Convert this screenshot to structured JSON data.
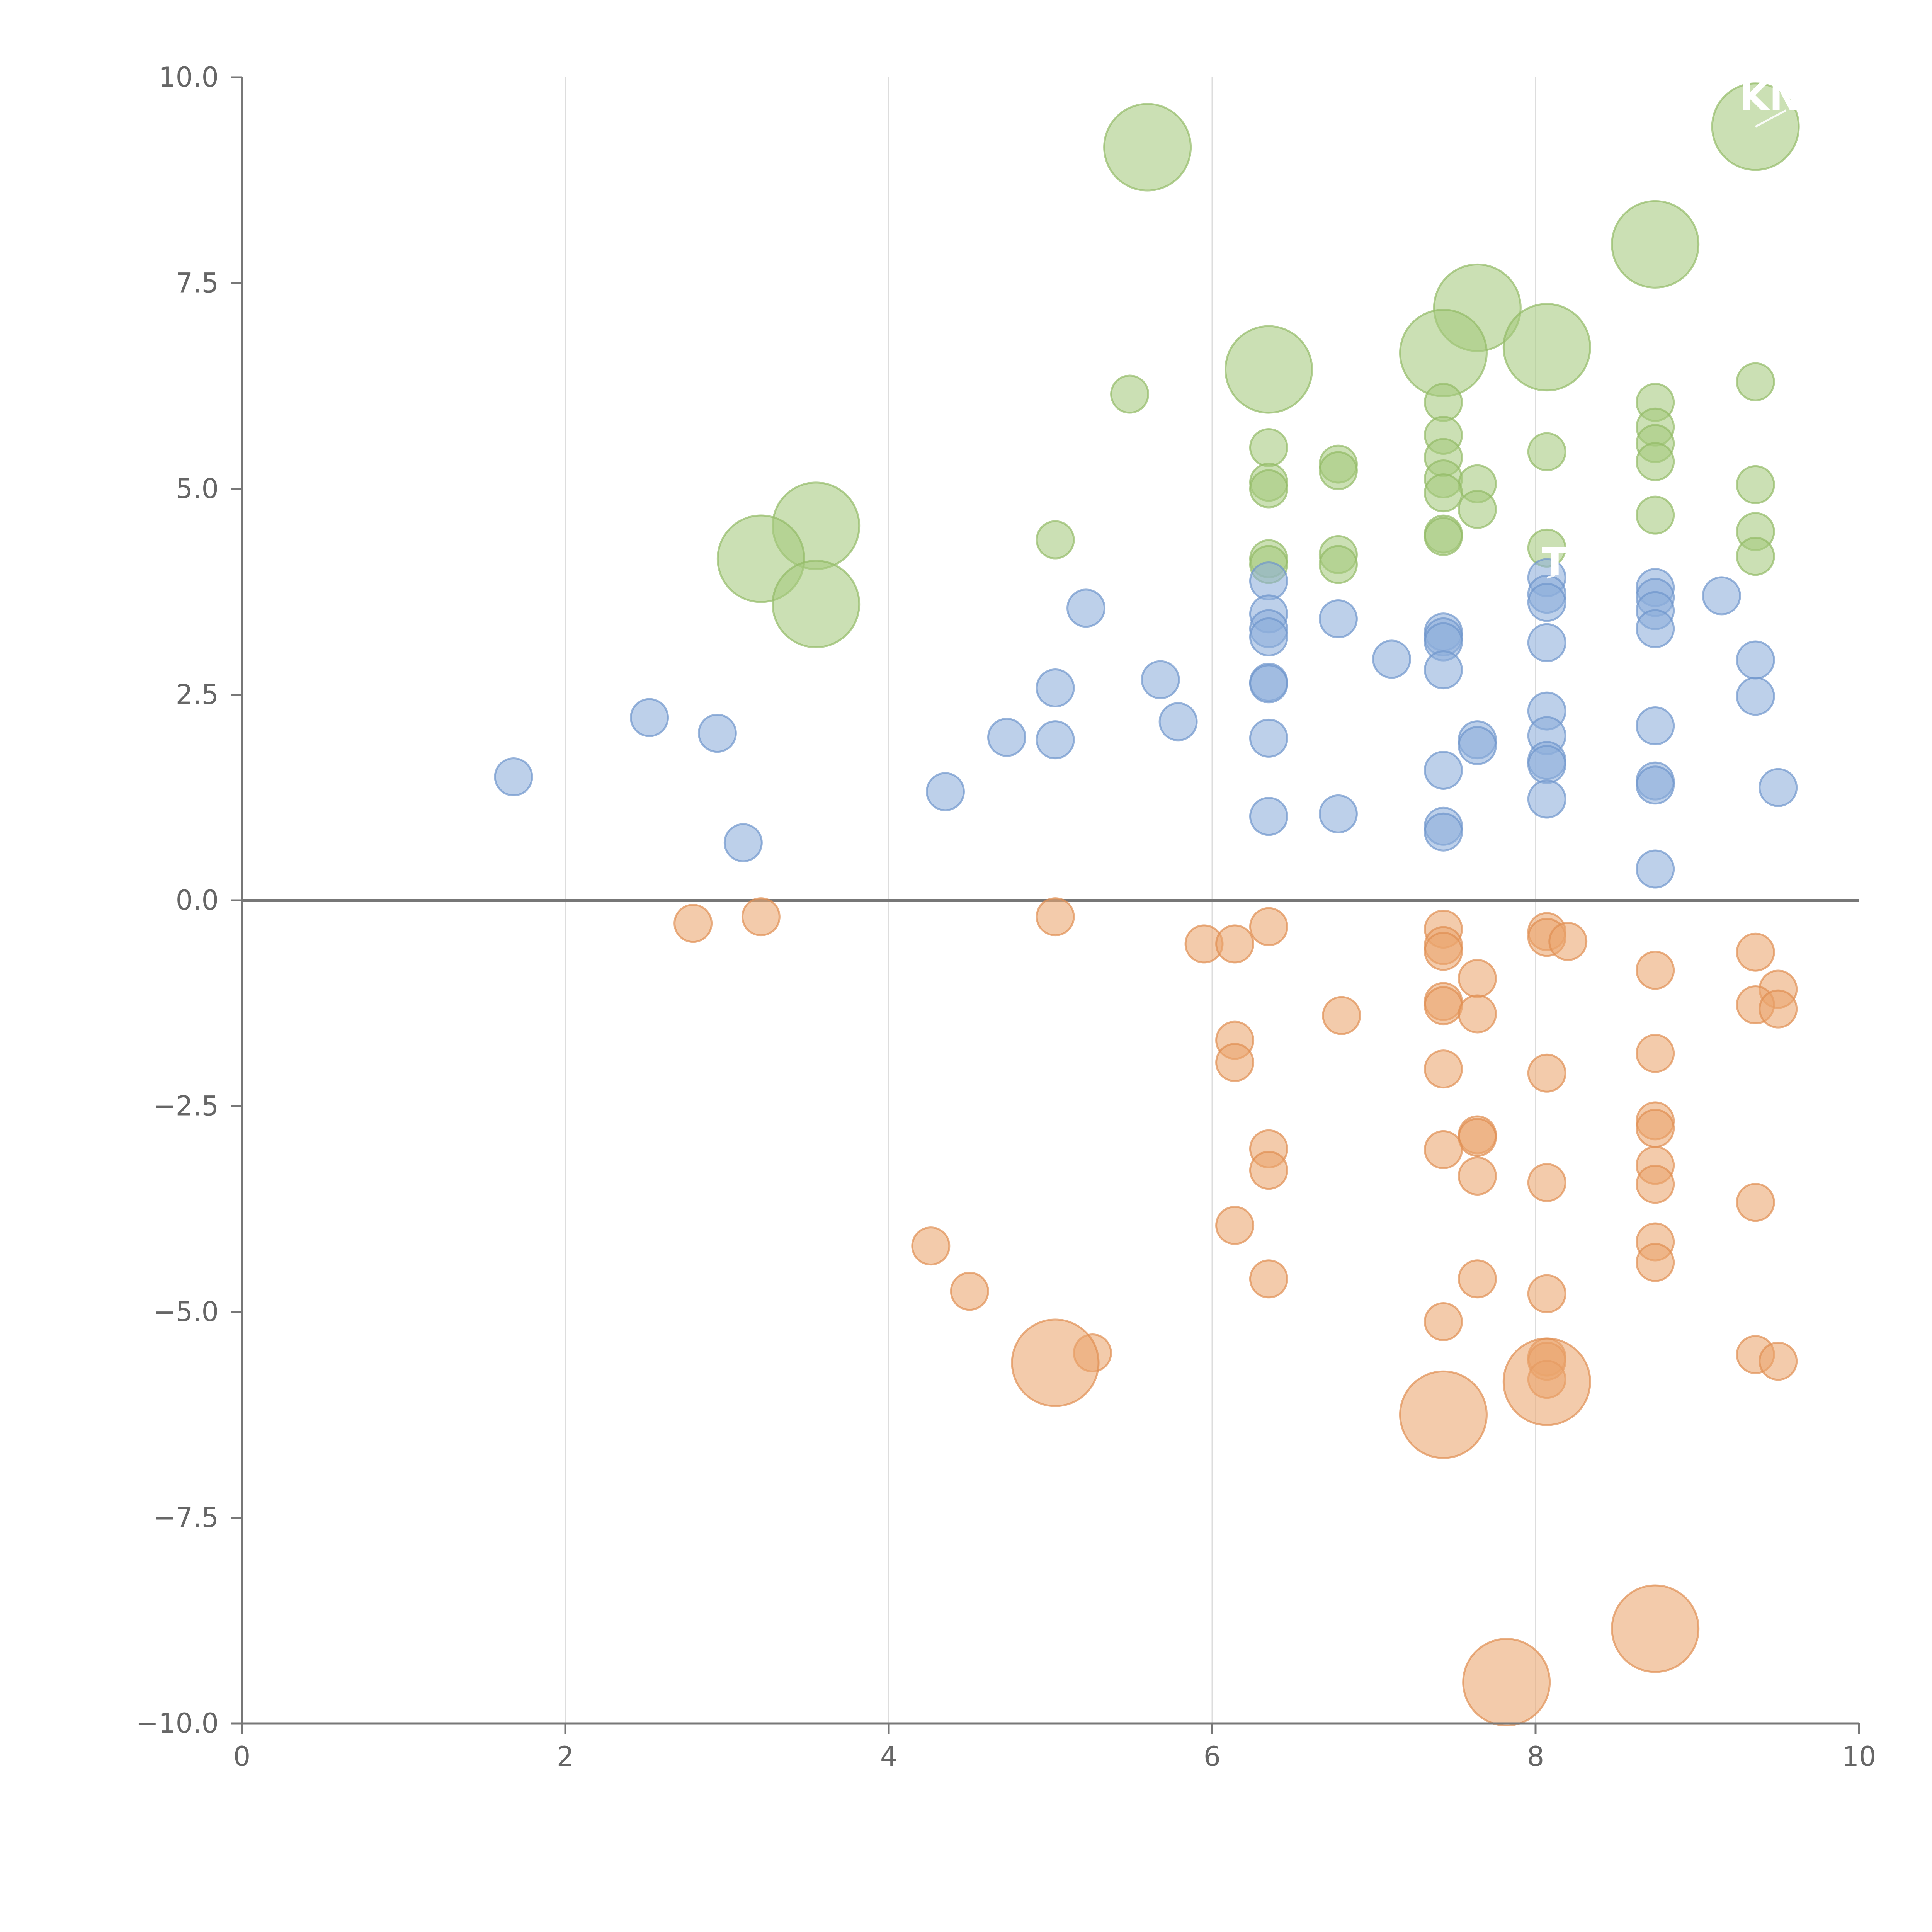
{
  "chart_data": {
    "type": "scatter",
    "title": "",
    "xlabel": "",
    "ylabel": "",
    "xlim": [
      0,
      10
    ],
    "ylim": [
      -10,
      10
    ],
    "x_ticks": [
      0,
      2,
      4,
      6,
      8,
      10
    ],
    "y_ticks": [
      10.0,
      7.5,
      5.0,
      2.5,
      0.0,
      -2.5,
      -5.0,
      -7.5,
      -10.0
    ],
    "x_tick_labels": [
      "0",
      "2",
      "4",
      "6",
      "8",
      "10"
    ],
    "y_tick_labels": [
      "10.0",
      "7.5",
      "5.0",
      "2.5",
      "0.0",
      "−2.5",
      "−5.0",
      "−7.5",
      "−10.0"
    ],
    "grid_x": true,
    "zero_line": true,
    "series": [
      {
        "name": "green",
        "color": "#a6c97e",
        "stroke": "#93bb67",
        "points": [
          {
            "x": 9.36,
            "y": 9.4,
            "s": "L"
          },
          {
            "x": 5.6,
            "y": 9.15,
            "s": "L"
          },
          {
            "x": 8.74,
            "y": 7.97,
            "s": "L"
          },
          {
            "x": 7.64,
            "y": 7.2,
            "s": "L"
          },
          {
            "x": 8.07,
            "y": 6.72,
            "s": "L"
          },
          {
            "x": 7.43,
            "y": 6.65,
            "s": "L"
          },
          {
            "x": 6.35,
            "y": 6.45,
            "s": "L"
          },
          {
            "x": 3.55,
            "y": 4.55,
            "s": "L"
          },
          {
            "x": 3.21,
            "y": 4.15,
            "s": "L"
          },
          {
            "x": 3.55,
            "y": 3.6,
            "s": "L"
          },
          {
            "x": 5.49,
            "y": 6.15,
            "s": "S"
          },
          {
            "x": 9.36,
            "y": 6.3,
            "s": "S"
          },
          {
            "x": 7.43,
            "y": 6.05,
            "s": "S"
          },
          {
            "x": 8.74,
            "y": 6.05,
            "s": "S"
          },
          {
            "x": 7.43,
            "y": 5.65,
            "s": "S"
          },
          {
            "x": 8.74,
            "y": 5.75,
            "s": "S"
          },
          {
            "x": 8.74,
            "y": 5.55,
            "s": "S"
          },
          {
            "x": 6.35,
            "y": 5.5,
            "s": "S"
          },
          {
            "x": 8.07,
            "y": 5.45,
            "s": "S"
          },
          {
            "x": 7.43,
            "y": 5.38,
            "s": "S"
          },
          {
            "x": 8.74,
            "y": 5.33,
            "s": "S"
          },
          {
            "x": 6.78,
            "y": 5.3,
            "s": "S"
          },
          {
            "x": 6.78,
            "y": 5.22,
            "s": "S"
          },
          {
            "x": 7.43,
            "y": 5.12,
            "s": "S"
          },
          {
            "x": 6.35,
            "y": 5.08,
            "s": "S"
          },
          {
            "x": 7.64,
            "y": 5.06,
            "s": "S"
          },
          {
            "x": 9.36,
            "y": 5.05,
            "s": "S"
          },
          {
            "x": 6.35,
            "y": 5.0,
            "s": "S"
          },
          {
            "x": 7.43,
            "y": 4.95,
            "s": "S"
          },
          {
            "x": 7.64,
            "y": 4.75,
            "s": "S"
          },
          {
            "x": 8.74,
            "y": 4.68,
            "s": "S"
          },
          {
            "x": 9.36,
            "y": 4.48,
            "s": "S"
          },
          {
            "x": 7.43,
            "y": 4.45,
            "s": "S"
          },
          {
            "x": 7.43,
            "y": 4.42,
            "s": "S"
          },
          {
            "x": 5.03,
            "y": 4.38,
            "s": "S"
          },
          {
            "x": 8.07,
            "y": 4.28,
            "s": "S"
          },
          {
            "x": 6.78,
            "y": 4.2,
            "s": "S"
          },
          {
            "x": 9.36,
            "y": 4.18,
            "s": "S"
          },
          {
            "x": 6.35,
            "y": 4.15,
            "s": "S"
          },
          {
            "x": 6.35,
            "y": 4.08,
            "s": "S"
          },
          {
            "x": 6.78,
            "y": 4.08,
            "s": "S"
          }
        ]
      },
      {
        "name": "blue",
        "color": "#8eaedb",
        "stroke": "#6f95cc",
        "points": [
          {
            "x": 6.35,
            "y": 3.88,
            "s": "S"
          },
          {
            "x": 8.07,
            "y": 3.92,
            "s": "S"
          },
          {
            "x": 8.74,
            "y": 3.8,
            "s": "S"
          },
          {
            "x": 8.07,
            "y": 3.72,
            "s": "S"
          },
          {
            "x": 8.74,
            "y": 3.68,
            "s": "S"
          },
          {
            "x": 9.15,
            "y": 3.7,
            "s": "S"
          },
          {
            "x": 8.07,
            "y": 3.62,
            "s": "S"
          },
          {
            "x": 5.22,
            "y": 3.55,
            "s": "S"
          },
          {
            "x": 8.74,
            "y": 3.52,
            "s": "S"
          },
          {
            "x": 6.35,
            "y": 3.48,
            "s": "S"
          },
          {
            "x": 6.78,
            "y": 3.42,
            "s": "S"
          },
          {
            "x": 8.74,
            "y": 3.3,
            "s": "S"
          },
          {
            "x": 6.35,
            "y": 3.3,
            "s": "S"
          },
          {
            "x": 7.43,
            "y": 3.26,
            "s": "S"
          },
          {
            "x": 7.43,
            "y": 3.2,
            "s": "S"
          },
          {
            "x": 6.35,
            "y": 3.2,
            "s": "S"
          },
          {
            "x": 7.43,
            "y": 3.14,
            "s": "S"
          },
          {
            "x": 8.07,
            "y": 3.13,
            "s": "S"
          },
          {
            "x": 7.11,
            "y": 2.93,
            "s": "S"
          },
          {
            "x": 9.36,
            "y": 2.92,
            "s": "S"
          },
          {
            "x": 7.43,
            "y": 2.8,
            "s": "S"
          },
          {
            "x": 5.68,
            "y": 2.68,
            "s": "S"
          },
          {
            "x": 6.35,
            "y": 2.65,
            "s": "S"
          },
          {
            "x": 6.35,
            "y": 2.63,
            "s": "S"
          },
          {
            "x": 5.03,
            "y": 2.58,
            "s": "S"
          },
          {
            "x": 9.36,
            "y": 2.48,
            "s": "S"
          },
          {
            "x": 8.07,
            "y": 2.3,
            "s": "S"
          },
          {
            "x": 2.52,
            "y": 2.22,
            "s": "S"
          },
          {
            "x": 5.79,
            "y": 2.17,
            "s": "S"
          },
          {
            "x": 8.74,
            "y": 2.12,
            "s": "S"
          },
          {
            "x": 2.94,
            "y": 2.03,
            "s": "S"
          },
          {
            "x": 8.07,
            "y": 2.0,
            "s": "S"
          },
          {
            "x": 4.73,
            "y": 1.98,
            "s": "S"
          },
          {
            "x": 6.35,
            "y": 1.97,
            "s": "S"
          },
          {
            "x": 5.03,
            "y": 1.95,
            "s": "S"
          },
          {
            "x": 7.64,
            "y": 1.95,
            "s": "S"
          },
          {
            "x": 7.64,
            "y": 1.88,
            "s": "S"
          },
          {
            "x": 8.07,
            "y": 1.7,
            "s": "S"
          },
          {
            "x": 8.07,
            "y": 1.65,
            "s": "S"
          },
          {
            "x": 7.43,
            "y": 1.58,
            "s": "S"
          },
          {
            "x": 1.68,
            "y": 1.5,
            "s": "S"
          },
          {
            "x": 8.74,
            "y": 1.45,
            "s": "S"
          },
          {
            "x": 8.74,
            "y": 1.4,
            "s": "S"
          },
          {
            "x": 9.5,
            "y": 1.37,
            "s": "S"
          },
          {
            "x": 4.35,
            "y": 1.32,
            "s": "S"
          },
          {
            "x": 8.07,
            "y": 1.23,
            "s": "S"
          },
          {
            "x": 6.78,
            "y": 1.05,
            "s": "S"
          },
          {
            "x": 6.35,
            "y": 1.02,
            "s": "S"
          },
          {
            "x": 7.43,
            "y": 0.9,
            "s": "S"
          },
          {
            "x": 7.43,
            "y": 0.83,
            "s": "S"
          },
          {
            "x": 3.1,
            "y": 0.7,
            "s": "S"
          },
          {
            "x": 8.74,
            "y": 0.38,
            "s": "S"
          }
        ]
      },
      {
        "name": "orange",
        "color": "#eaa56f",
        "stroke": "#e08e52",
        "points": [
          {
            "x": 2.79,
            "y": -0.28,
            "s": "S"
          },
          {
            "x": 3.21,
            "y": -0.2,
            "s": "S"
          },
          {
            "x": 5.03,
            "y": -0.2,
            "s": "S"
          },
          {
            "x": 6.35,
            "y": -0.32,
            "s": "S"
          },
          {
            "x": 7.43,
            "y": -0.35,
            "s": "S"
          },
          {
            "x": 8.07,
            "y": -0.38,
            "s": "S"
          },
          {
            "x": 8.07,
            "y": -0.45,
            "s": "S"
          },
          {
            "x": 8.2,
            "y": -0.5,
            "s": "S"
          },
          {
            "x": 5.95,
            "y": -0.53,
            "s": "S"
          },
          {
            "x": 6.14,
            "y": -0.53,
            "s": "S"
          },
          {
            "x": 7.43,
            "y": -0.55,
            "s": "S"
          },
          {
            "x": 7.43,
            "y": -0.62,
            "s": "S"
          },
          {
            "x": 9.36,
            "y": -0.63,
            "s": "S"
          },
          {
            "x": 8.74,
            "y": -0.85,
            "s": "S"
          },
          {
            "x": 7.64,
            "y": -0.95,
            "s": "S"
          },
          {
            "x": 9.5,
            "y": -1.08,
            "s": "S"
          },
          {
            "x": 7.43,
            "y": -1.23,
            "s": "S"
          },
          {
            "x": 7.43,
            "y": -1.28,
            "s": "S"
          },
          {
            "x": 9.36,
            "y": -1.27,
            "s": "S"
          },
          {
            "x": 9.5,
            "y": -1.32,
            "s": "S"
          },
          {
            "x": 7.64,
            "y": -1.38,
            "s": "S"
          },
          {
            "x": 6.8,
            "y": -1.4,
            "s": "S"
          },
          {
            "x": 6.14,
            "y": -1.7,
            "s": "S"
          },
          {
            "x": 8.74,
            "y": -1.86,
            "s": "S"
          },
          {
            "x": 6.14,
            "y": -1.97,
            "s": "S"
          },
          {
            "x": 7.43,
            "y": -2.05,
            "s": "S"
          },
          {
            "x": 8.07,
            "y": -2.1,
            "s": "S"
          },
          {
            "x": 8.74,
            "y": -2.68,
            "s": "S"
          },
          {
            "x": 8.74,
            "y": -2.77,
            "s": "S"
          },
          {
            "x": 7.64,
            "y": -2.85,
            "s": "S"
          },
          {
            "x": 7.64,
            "y": -2.88,
            "s": "S"
          },
          {
            "x": 6.35,
            "y": -3.02,
            "s": "S"
          },
          {
            "x": 7.43,
            "y": -3.03,
            "s": "S"
          },
          {
            "x": 8.74,
            "y": -3.22,
            "s": "S"
          },
          {
            "x": 6.35,
            "y": -3.28,
            "s": "S"
          },
          {
            "x": 7.64,
            "y": -3.35,
            "s": "S"
          },
          {
            "x": 8.07,
            "y": -3.43,
            "s": "S"
          },
          {
            "x": 8.74,
            "y": -3.45,
            "s": "S"
          },
          {
            "x": 9.36,
            "y": -3.67,
            "s": "S"
          },
          {
            "x": 6.14,
            "y": -3.95,
            "s": "S"
          },
          {
            "x": 8.74,
            "y": -4.15,
            "s": "S"
          },
          {
            "x": 4.26,
            "y": -4.2,
            "s": "S"
          },
          {
            "x": 8.74,
            "y": -4.4,
            "s": "S"
          },
          {
            "x": 6.35,
            "y": -4.6,
            "s": "S"
          },
          {
            "x": 7.64,
            "y": -4.6,
            "s": "S"
          },
          {
            "x": 4.5,
            "y": -4.75,
            "s": "S"
          },
          {
            "x": 8.07,
            "y": -4.78,
            "s": "S"
          },
          {
            "x": 7.43,
            "y": -5.12,
            "s": "S"
          },
          {
            "x": 9.36,
            "y": -5.52,
            "s": "S"
          },
          {
            "x": 5.26,
            "y": -5.5,
            "s": "S"
          },
          {
            "x": 8.07,
            "y": -5.55,
            "s": "S"
          },
          {
            "x": 8.07,
            "y": -5.6,
            "s": "S"
          },
          {
            "x": 9.5,
            "y": -5.6,
            "s": "S"
          },
          {
            "x": 8.07,
            "y": -5.82,
            "s": "S"
          },
          {
            "x": 5.03,
            "y": -5.62,
            "s": "L"
          },
          {
            "x": 8.07,
            "y": -5.85,
            "s": "L"
          },
          {
            "x": 7.43,
            "y": -6.25,
            "s": "L"
          },
          {
            "x": 8.74,
            "y": -8.85,
            "s": "L"
          },
          {
            "x": 7.82,
            "y": -9.5,
            "s": "L"
          }
        ]
      }
    ],
    "annotations": [
      {
        "text": "KNG",
        "x": 9.55,
        "y": 9.6,
        "from_x": 9.36,
        "from_y": 9.4
      },
      {
        "text": "T",
        "x": 8.12,
        "y": 3.95,
        "from_x": 8.07,
        "from_y": 3.92
      }
    ]
  }
}
